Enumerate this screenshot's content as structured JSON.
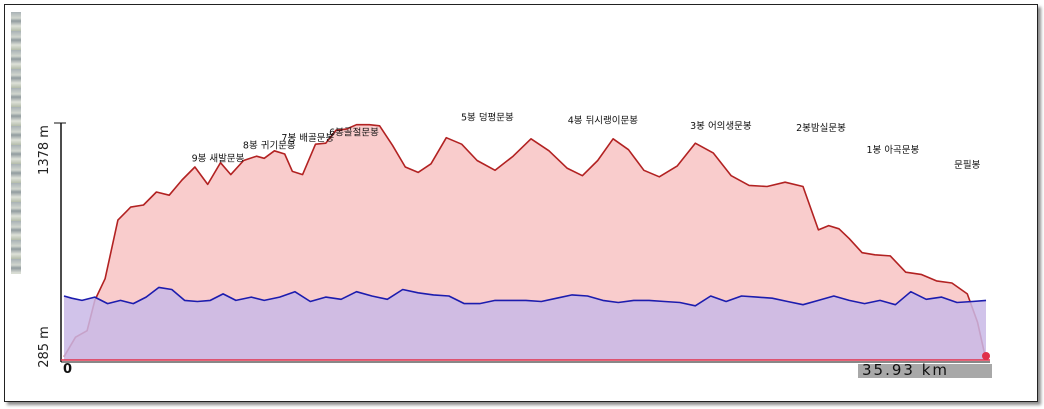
{
  "chart_data": {
    "type": "area",
    "y_max_label": "1378 m",
    "y_min_label": "285 m",
    "x_start_label": "0",
    "x_end_label": "35.93 km",
    "ylim": [
      285,
      1378
    ],
    "xlim": [
      0,
      35.93
    ],
    "series": [
      {
        "color": "#b22222",
        "fill": "#f9c9c9",
        "x": [
          0,
          0.45,
          0.9,
          1.2,
          1.6,
          2.1,
          2.6,
          3.1,
          3.6,
          4.1,
          4.6,
          5.1,
          5.6,
          6.1,
          6.5,
          7.0,
          7.5,
          7.8,
          8.2,
          8.6,
          8.9,
          9.3,
          9.8,
          10.2,
          10.6,
          11.0,
          11.4,
          11.9,
          12.3,
          12.8,
          13.3,
          13.8,
          14.3,
          14.9,
          15.5,
          16.1,
          16.8,
          17.5,
          18.2,
          18.9,
          19.6,
          20.2,
          20.8,
          21.4,
          22.0,
          22.6,
          23.2,
          23.9,
          24.6,
          25.3,
          26.0,
          26.7,
          27.4,
          28.1,
          28.8,
          29.4,
          29.8,
          30.2,
          30.6,
          31.1,
          31.6,
          32.2,
          32.8,
          33.4,
          34.0,
          34.6,
          35.2,
          35.6,
          35.93
        ],
        "y": [
          300,
          390,
          420,
          560,
          660,
          930,
          990,
          1000,
          1060,
          1045,
          1115,
          1175,
          1095,
          1195,
          1140,
          1205,
          1225,
          1215,
          1250,
          1235,
          1155,
          1140,
          1280,
          1285,
          1345,
          1350,
          1370,
          1370,
          1365,
          1275,
          1175,
          1150,
          1190,
          1310,
          1280,
          1205,
          1160,
          1225,
          1305,
          1250,
          1170,
          1135,
          1205,
          1305,
          1255,
          1160,
          1130,
          1180,
          1285,
          1240,
          1135,
          1090,
          1085,
          1105,
          1085,
          885,
          905,
          890,
          845,
          780,
          770,
          765,
          690,
          680,
          650,
          640,
          590,
          460,
          285
        ]
      },
      {
        "color": "#1c1cae",
        "fill": "#c9b9e6",
        "x": [
          0,
          0.3,
          0.7,
          1.2,
          1.7,
          2.2,
          2.7,
          3.2,
          3.7,
          4.2,
          4.7,
          5.2,
          5.7,
          6.2,
          6.7,
          7.3,
          7.8,
          8.4,
          9.0,
          9.6,
          10.2,
          10.8,
          11.4,
          12.0,
          12.6,
          13.2,
          13.8,
          14.4,
          15.0,
          15.6,
          16.2,
          16.8,
          17.4,
          18.0,
          18.6,
          19.2,
          19.8,
          20.4,
          21.0,
          21.6,
          22.2,
          22.8,
          23.4,
          24.0,
          24.6,
          25.2,
          25.8,
          26.4,
          27.0,
          27.6,
          28.2,
          28.8,
          29.4,
          30.0,
          30.6,
          31.2,
          31.8,
          32.4,
          33.0,
          33.6,
          34.2,
          34.8,
          35.4,
          35.93
        ],
        "y": [
          580,
          570,
          560,
          575,
          545,
          560,
          545,
          575,
          620,
          610,
          560,
          555,
          560,
          590,
          560,
          575,
          560,
          575,
          600,
          555,
          575,
          565,
          600,
          580,
          565,
          610,
          595,
          585,
          580,
          545,
          545,
          560,
          560,
          560,
          555,
          570,
          585,
          580,
          560,
          550,
          560,
          560,
          555,
          550,
          535,
          580,
          555,
          580,
          575,
          570,
          555,
          540,
          560,
          580,
          560,
          545,
          560,
          540,
          600,
          565,
          575,
          550,
          555,
          560
        ]
      }
    ],
    "annotations": [
      {
        "text": "9봉 새발문봉",
        "x": 6.0,
        "y": 1200
      },
      {
        "text": "8봉 귀기문봉",
        "x": 8.0,
        "y": 1260
      },
      {
        "text": "7봉 배골문봉",
        "x": 9.5,
        "y": 1295
      },
      {
        "text": "6봉골절문봉",
        "x": 11.3,
        "y": 1320
      },
      {
        "text": "5봉 덩평문봉",
        "x": 16.5,
        "y": 1390
      },
      {
        "text": "4봉 뒤시랭이문봉",
        "x": 21.0,
        "y": 1375
      },
      {
        "text": "3봉 어의생문봉",
        "x": 25.6,
        "y": 1350
      },
      {
        "text": "2봉밤실문봉",
        "x": 29.5,
        "y": 1340
      },
      {
        "text": "1봉 아곡문봉",
        "x": 32.3,
        "y": 1240
      },
      {
        "text": "문필봉",
        "x": 35.2,
        "y": 1170
      }
    ],
    "grid": false
  }
}
